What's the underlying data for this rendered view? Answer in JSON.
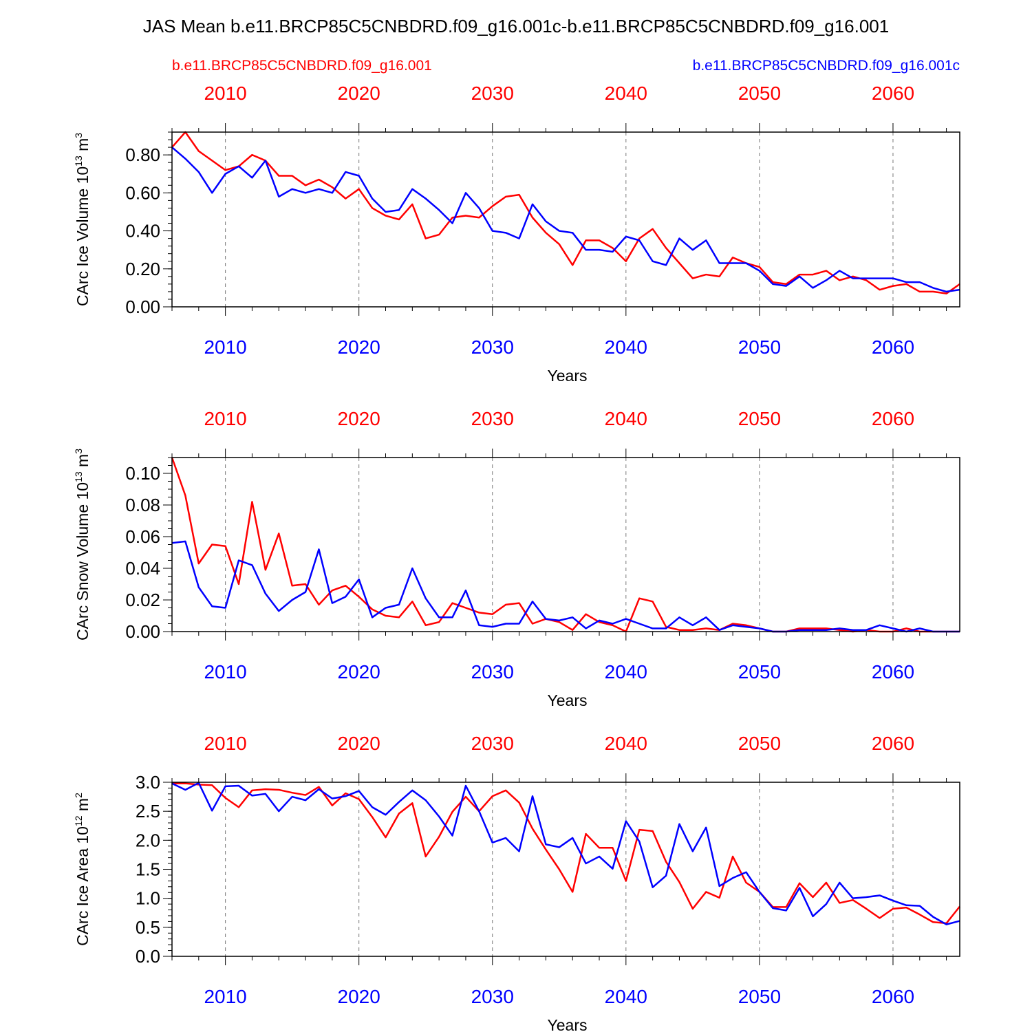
{
  "title": "JAS Mean b.e11.BRCP85C5CNBDRD.f09_g16.001c-b.e11.BRCP85C5CNBDRD.f09_g16.001",
  "legend": {
    "red_label": "b.e11.BRCP85C5CNBDRD.f09_g16.001",
    "blue_label": "b.e11.BRCP85C5CNBDRD.f09_g16.001c"
  },
  "colors": {
    "red": "#ff0000",
    "blue": "#0000ff",
    "frame": "#000000",
    "grid": "#777777"
  },
  "chart_data": [
    {
      "type": "line",
      "ylabel": "CArc Ice Volume 10",
      "ylabel_exp": "13",
      "ylabel_unit": " m",
      "ylabel_unit_exp": "3",
      "xlabel": "Years",
      "xlim": [
        2006,
        2065
      ],
      "ylim": [
        0,
        0.92
      ],
      "yticks": [
        0,
        0.2,
        0.4,
        0.6,
        0.8
      ],
      "ytick_labels": [
        "0.00",
        "0.20",
        "0.40",
        "0.60",
        "0.80"
      ],
      "yminor_step": 0.04,
      "xticks": [
        2010,
        2020,
        2030,
        2040,
        2050,
        2060
      ],
      "xtick_labels": [
        "2010",
        "2020",
        "2030",
        "2040",
        "2050",
        "2060"
      ],
      "x": [
        2006,
        2007,
        2008,
        2009,
        2010,
        2011,
        2012,
        2013,
        2014,
        2015,
        2016,
        2017,
        2018,
        2019,
        2020,
        2021,
        2022,
        2023,
        2024,
        2025,
        2026,
        2027,
        2028,
        2029,
        2030,
        2031,
        2032,
        2033,
        2034,
        2035,
        2036,
        2037,
        2038,
        2039,
        2040,
        2041,
        2042,
        2043,
        2044,
        2045,
        2046,
        2047,
        2048,
        2049,
        2050,
        2051,
        2052,
        2053,
        2054,
        2055,
        2056,
        2057,
        2058,
        2059,
        2060,
        2061,
        2062,
        2063,
        2064,
        2065
      ],
      "series": [
        {
          "name": "b.e11.BRCP85C5CNBDRD.f09_g16.001",
          "color": "red",
          "values": [
            0.84,
            0.92,
            0.82,
            0.77,
            0.72,
            0.74,
            0.8,
            0.77,
            0.69,
            0.69,
            0.64,
            0.67,
            0.63,
            0.57,
            0.62,
            0.52,
            0.48,
            0.46,
            0.54,
            0.36,
            0.38,
            0.47,
            0.48,
            0.47,
            0.53,
            0.58,
            0.59,
            0.47,
            0.39,
            0.33,
            0.22,
            0.35,
            0.35,
            0.31,
            0.24,
            0.36,
            0.41,
            0.31,
            0.23,
            0.15,
            0.17,
            0.16,
            0.26,
            0.23,
            0.21,
            0.13,
            0.12,
            0.17,
            0.17,
            0.19,
            0.14,
            0.16,
            0.14,
            0.09,
            0.11,
            0.12,
            0.08,
            0.08,
            0.07,
            0.12
          ]
        },
        {
          "name": "b.e11.BRCP85C5CNBDRD.f09_g16.001c",
          "color": "blue",
          "values": [
            0.84,
            0.78,
            0.71,
            0.6,
            0.7,
            0.74,
            0.68,
            0.77,
            0.58,
            0.62,
            0.6,
            0.62,
            0.6,
            0.71,
            0.69,
            0.57,
            0.5,
            0.51,
            0.62,
            0.57,
            0.51,
            0.44,
            0.6,
            0.52,
            0.4,
            0.39,
            0.36,
            0.54,
            0.45,
            0.4,
            0.39,
            0.3,
            0.3,
            0.29,
            0.37,
            0.35,
            0.24,
            0.22,
            0.36,
            0.3,
            0.35,
            0.23,
            0.23,
            0.23,
            0.19,
            0.12,
            0.11,
            0.16,
            0.1,
            0.14,
            0.19,
            0.15,
            0.15,
            0.15,
            0.15,
            0.13,
            0.13,
            0.1,
            0.08,
            0.09
          ]
        }
      ]
    },
    {
      "type": "line",
      "ylabel": "CArc Snow Volume 10",
      "ylabel_exp": "13",
      "ylabel_unit": " m",
      "ylabel_unit_exp": "3",
      "xlabel": "Years",
      "xlim": [
        2006,
        2065
      ],
      "ylim": [
        0,
        0.11
      ],
      "yticks": [
        0,
        0.02,
        0.04,
        0.06,
        0.08,
        0.1
      ],
      "ytick_labels": [
        "0.00",
        "0.02",
        "0.04",
        "0.06",
        "0.08",
        "0.10"
      ],
      "yminor_step": 0.005,
      "xticks": [
        2010,
        2020,
        2030,
        2040,
        2050,
        2060
      ],
      "xtick_labels": [
        "2010",
        "2020",
        "2030",
        "2040",
        "2050",
        "2060"
      ],
      "x": [
        2006,
        2007,
        2008,
        2009,
        2010,
        2011,
        2012,
        2013,
        2014,
        2015,
        2016,
        2017,
        2018,
        2019,
        2020,
        2021,
        2022,
        2023,
        2024,
        2025,
        2026,
        2027,
        2028,
        2029,
        2030,
        2031,
        2032,
        2033,
        2034,
        2035,
        2036,
        2037,
        2038,
        2039,
        2040,
        2041,
        2042,
        2043,
        2044,
        2045,
        2046,
        2047,
        2048,
        2049,
        2050,
        2051,
        2052,
        2053,
        2054,
        2055,
        2056,
        2057,
        2058,
        2059,
        2060,
        2061,
        2062,
        2063,
        2064,
        2065
      ],
      "series": [
        {
          "name": "b.e11.BRCP85C5CNBDRD.f09_g16.001",
          "color": "red",
          "values": [
            0.11,
            0.086,
            0.043,
            0.055,
            0.054,
            0.03,
            0.082,
            0.039,
            0.062,
            0.029,
            0.03,
            0.017,
            0.026,
            0.029,
            0.022,
            0.014,
            0.01,
            0.009,
            0.019,
            0.004,
            0.006,
            0.018,
            0.015,
            0.012,
            0.011,
            0.017,
            0.018,
            0.005,
            0.008,
            0.006,
            0.001,
            0.011,
            0.006,
            0.004,
            0.0,
            0.021,
            0.019,
            0.003,
            0.001,
            0.001,
            0.002,
            0.001,
            0.005,
            0.004,
            0.002,
            0.0,
            0.0,
            0.002,
            0.002,
            0.002,
            0.001,
            0.0,
            0.001,
            0.0,
            0.0,
            0.002,
            0.0,
            0.0,
            0.0,
            0.0
          ]
        },
        {
          "name": "b.e11.BRCP85C5CNBDRD.f09_g16.001c",
          "color": "blue",
          "values": [
            0.056,
            0.057,
            0.028,
            0.016,
            0.015,
            0.045,
            0.042,
            0.024,
            0.013,
            0.02,
            0.025,
            0.052,
            0.018,
            0.022,
            0.033,
            0.009,
            0.015,
            0.017,
            0.04,
            0.021,
            0.009,
            0.009,
            0.026,
            0.004,
            0.003,
            0.005,
            0.005,
            0.019,
            0.008,
            0.007,
            0.009,
            0.002,
            0.007,
            0.005,
            0.008,
            0.005,
            0.002,
            0.002,
            0.009,
            0.004,
            0.009,
            0.001,
            0.004,
            0.003,
            0.002,
            0.0,
            0.0,
            0.001,
            0.001,
            0.001,
            0.002,
            0.001,
            0.001,
            0.004,
            0.002,
            0.0,
            0.002,
            0.0,
            0.0,
            0.0
          ]
        }
      ]
    },
    {
      "type": "line",
      "ylabel": "CArc Ice Area 10",
      "ylabel_exp": "12",
      "ylabel_unit": " m",
      "ylabel_unit_exp": "2",
      "xlabel": "Years",
      "xlim": [
        2006,
        2065
      ],
      "ylim": [
        0,
        3.0
      ],
      "yticks": [
        0,
        0.5,
        1.0,
        1.5,
        2.0,
        2.5,
        3.0
      ],
      "ytick_labels": [
        "0.0",
        "0.5",
        "1.0",
        "1.5",
        "2.0",
        "2.5",
        "3.0"
      ],
      "yminor_step": 0.1,
      "xticks": [
        2010,
        2020,
        2030,
        2040,
        2050,
        2060
      ],
      "xtick_labels": [
        "2010",
        "2020",
        "2030",
        "2040",
        "2050",
        "2060"
      ],
      "x": [
        2006,
        2007,
        2008,
        2009,
        2010,
        2011,
        2012,
        2013,
        2014,
        2015,
        2016,
        2017,
        2018,
        2019,
        2020,
        2021,
        2022,
        2023,
        2024,
        2025,
        2026,
        2027,
        2028,
        2029,
        2030,
        2031,
        2032,
        2033,
        2034,
        2035,
        2036,
        2037,
        2038,
        2039,
        2040,
        2041,
        2042,
        2043,
        2044,
        2045,
        2046,
        2047,
        2048,
        2049,
        2050,
        2051,
        2052,
        2053,
        2054,
        2055,
        2056,
        2057,
        2058,
        2059,
        2060,
        2061,
        2062,
        2063,
        2064,
        2065
      ],
      "series": [
        {
          "name": "b.e11.BRCP85C5CNBDRD.f09_g16.001",
          "color": "red",
          "values": [
            2.98,
            2.98,
            2.96,
            2.95,
            2.73,
            2.57,
            2.86,
            2.88,
            2.87,
            2.82,
            2.78,
            2.92,
            2.6,
            2.81,
            2.71,
            2.4,
            2.05,
            2.46,
            2.64,
            1.72,
            2.06,
            2.49,
            2.75,
            2.5,
            2.76,
            2.86,
            2.65,
            2.2,
            1.84,
            1.5,
            1.11,
            2.11,
            1.87,
            1.87,
            1.3,
            2.18,
            2.16,
            1.63,
            1.28,
            0.82,
            1.11,
            1.01,
            1.72,
            1.27,
            1.11,
            0.85,
            0.85,
            1.26,
            1.02,
            1.27,
            0.92,
            0.97,
            0.82,
            0.66,
            0.82,
            0.84,
            0.72,
            0.59,
            0.57,
            0.86
          ]
        },
        {
          "name": "b.e11.BRCP85C5CNBDRD.f09_g16.001c",
          "color": "blue",
          "values": [
            2.98,
            2.87,
            2.99,
            2.51,
            2.93,
            2.94,
            2.77,
            2.8,
            2.5,
            2.75,
            2.69,
            2.88,
            2.72,
            2.76,
            2.85,
            2.57,
            2.44,
            2.66,
            2.86,
            2.69,
            2.41,
            2.08,
            2.94,
            2.5,
            1.96,
            2.04,
            1.81,
            2.76,
            1.93,
            1.88,
            2.04,
            1.6,
            1.72,
            1.51,
            2.33,
            1.98,
            1.19,
            1.39,
            2.28,
            1.81,
            2.22,
            1.21,
            1.35,
            1.45,
            1.11,
            0.83,
            0.79,
            1.18,
            0.69,
            0.9,
            1.27,
            1.0,
            1.02,
            1.05,
            0.96,
            0.88,
            0.87,
            0.68,
            0.55,
            0.61
          ]
        }
      ]
    }
  ]
}
